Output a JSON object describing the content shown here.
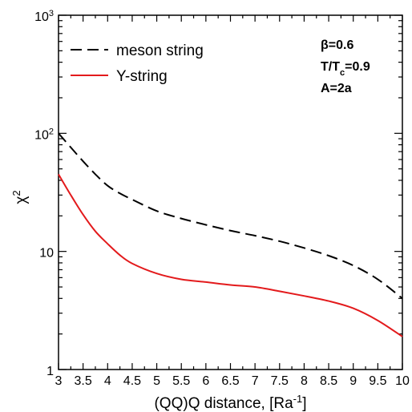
{
  "chart_data": {
    "type": "line",
    "xlabel": "(QQ)Q distance, [Ra",
    "xlabel_sup": "-1",
    "xlabel_close": "]",
    "ylabel": "χ",
    "ylabel_sup": "2",
    "xlim": [
      3,
      10
    ],
    "ylim": [
      1,
      1000
    ],
    "yscale": "log",
    "grid": false,
    "legend_position": "top-left",
    "x_ticks": [
      3,
      3.5,
      4,
      4.5,
      5,
      5.5,
      6,
      6.5,
      7,
      7.5,
      8,
      8.5,
      9,
      9.5,
      10
    ],
    "x_tick_labels": [
      "3",
      "3.5",
      "4",
      "4.5",
      "5",
      "5.5",
      "6",
      "6.5",
      "7",
      "7.5",
      "8",
      "8.5",
      "9",
      "9.5",
      "10"
    ],
    "y_ticks": [
      1,
      10,
      100,
      1000
    ],
    "y_tick_labels": [
      {
        "base": "1",
        "sup": ""
      },
      {
        "base": "10",
        "sup": ""
      },
      {
        "base": "10",
        "sup": "2"
      },
      {
        "base": "10",
        "sup": "3"
      }
    ],
    "x": [
      3,
      3.25,
      3.5,
      3.75,
      4,
      4.25,
      4.5,
      5,
      5.5,
      6,
      6.5,
      7,
      7.5,
      8,
      8.5,
      9,
      9.5,
      10
    ],
    "series": [
      {
        "name": "meson string",
        "color": "#000000",
        "dash": "dashed",
        "values": [
          100,
          76,
          58,
          45,
          36,
          31,
          27.5,
          22,
          19,
          16.8,
          15,
          13.6,
          12.2,
          10.7,
          9.2,
          7.6,
          5.8,
          4.0
        ]
      },
      {
        "name": "Y-string",
        "color": "#e31a1c",
        "dash": "solid",
        "values": [
          45,
          30,
          20.5,
          14.8,
          11.6,
          9.3,
          7.9,
          6.5,
          5.8,
          5.5,
          5.2,
          5.0,
          4.6,
          4.2,
          3.8,
          3.3,
          2.6,
          1.9
        ]
      }
    ],
    "annotations": [
      {
        "base": "β=0.6",
        "sub": "",
        "tail": ""
      },
      {
        "base": "T/T",
        "sub": "c",
        "tail": "=0.9"
      },
      {
        "base": "A=2a",
        "sub": "",
        "tail": ""
      }
    ]
  }
}
